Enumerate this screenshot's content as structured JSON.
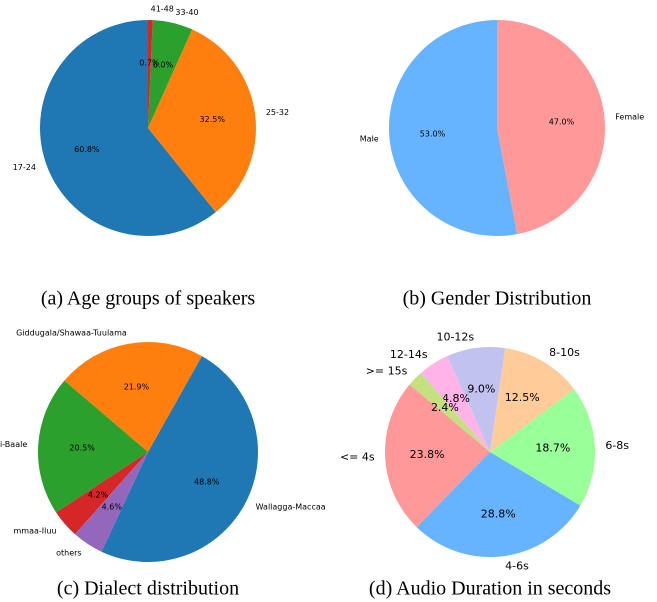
{
  "chart_data": [
    {
      "type": "pie",
      "caption": "(a) Age groups of speakers",
      "categories": [
        "17-24",
        "25-32",
        "33-40",
        "41-48"
      ],
      "values": [
        60.8,
        32.5,
        6.0,
        0.7
      ],
      "value_labels": [
        "60.8%",
        "32.5%",
        "6.0%",
        "0.7%"
      ],
      "colors": [
        "#1f77b4",
        "#ff7f0e",
        "#2ca02c",
        "#d62728"
      ],
      "startangle": 90
    },
    {
      "type": "pie",
      "caption": "(b) Gender Distribution",
      "categories": [
        "Male",
        "Female"
      ],
      "values": [
        53.0,
        47.0
      ],
      "value_labels": [
        "53.0%",
        "47.0%"
      ],
      "colors": [
        "#66b3ff",
        "#ff9999"
      ],
      "startangle": 90
    },
    {
      "type": "pie",
      "caption": "(c) Dialect distribution",
      "categories": [
        "Wallagga-Maccaa",
        "Giddugala/Shawaa-Tuulama",
        "Arsii-Baale",
        "mmaa-Iluu",
        "others"
      ],
      "values": [
        48.8,
        21.9,
        20.5,
        4.2,
        4.6
      ],
      "value_labels": [
        "48.8%",
        "21.9%",
        "20.5%",
        "4.2%",
        "4.6%"
      ],
      "colors": [
        "#1f77b4",
        "#ff7f0e",
        "#2ca02c",
        "#d62728",
        "#9467bd"
      ],
      "startangle": 245
    },
    {
      "type": "pie",
      "caption": "(d) Audio Duration in seconds",
      "categories": [
        "<= 4s",
        "4-6s",
        "6-8s",
        "8-10s",
        "10-12s",
        "12-14s",
        ">= 15s"
      ],
      "values": [
        23.8,
        28.8,
        18.7,
        12.5,
        9.0,
        4.8,
        2.4
      ],
      "value_labels": [
        "23.8%",
        "28.8%",
        "18.7%",
        "12.5%",
        "9.0%",
        "4.8%",
        "2.4%"
      ],
      "colors": [
        "#ff9999",
        "#66b3ff",
        "#99ff99",
        "#ffcc99",
        "#c2c2f0",
        "#ffb3e6",
        "#c4e17f"
      ],
      "startangle": 140
    }
  ]
}
